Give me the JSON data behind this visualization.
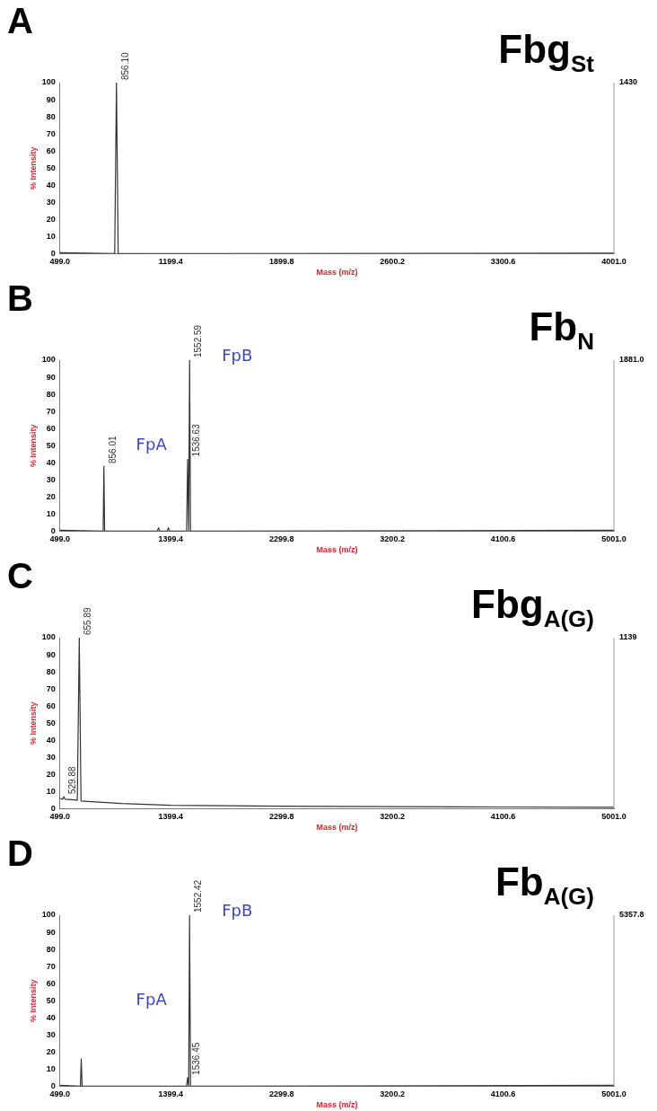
{
  "chart_data": [
    {
      "type": "line",
      "title": "Fbg$_{St}$",
      "xlabel": "Mass (m/z)",
      "ylabel": "% Intensity",
      "marker": "none",
      "legend": false,
      "xlim": [
        499.0,
        4001.0
      ],
      "xticks": [
        {
          "value": 499.0,
          "label": "499.0"
        },
        {
          "value": 1199.4,
          "label": "1199.4"
        },
        {
          "value": 1899.8,
          "label": "1899.8"
        },
        {
          "value": 2600.2,
          "label": "2600.2"
        },
        {
          "value": 3300.6,
          "label": "3300.6"
        },
        {
          "value": 4001.0,
          "label": "4001.0"
        }
      ],
      "ylim": [
        0,
        100
      ],
      "yticks": [
        0,
        10,
        20,
        30,
        40,
        50,
        60,
        70,
        80,
        90,
        100
      ],
      "series": [
        {
          "color": "#333333",
          "x": [
            499,
            845,
            856.1,
            867,
            4001
          ],
          "values": [
            0.5,
            0,
            100,
            0,
            0.3
          ]
        }
      ],
      "annotations": [
        "A",
        "1430",
        {
          "text": "856.10",
          "x": 856.1,
          "y": 100
        }
      ]
    },
    {
      "type": "line",
      "title": "Fb$_{N}$",
      "xlabel": "Mass (m/z)",
      "ylabel": "% Intensity",
      "marker": "none",
      "legend": false,
      "xlim": [
        499.0,
        5001.0
      ],
      "xticks": [
        {
          "value": 499.0,
          "label": "499.0"
        },
        {
          "value": 1399.4,
          "label": "1399.4"
        },
        {
          "value": 2299.8,
          "label": "2299.8"
        },
        {
          "value": 3200.2,
          "label": "3200.2"
        },
        {
          "value": 4100.6,
          "label": "4100.6"
        },
        {
          "value": 5001.0,
          "label": "5001.0"
        }
      ],
      "ylim": [
        0,
        100
      ],
      "yticks": [
        0,
        10,
        20,
        30,
        40,
        50,
        60,
        70,
        80,
        90,
        100
      ],
      "series": [
        {
          "color": "#333333",
          "x": [
            499,
            850,
            856.01,
            862,
            1290,
            1300,
            1310,
            1370,
            1380,
            1390,
            1528,
            1536.63,
            1545,
            1552.59,
            1560,
            5001
          ],
          "values": [
            0.5,
            0,
            38,
            0,
            0,
            2,
            0,
            0,
            2,
            0,
            0,
            42,
            0,
            100,
            0,
            0.5
          ]
        }
      ],
      "annotations": [
        "B",
        "1881.0",
        "FpA",
        "FpB",
        {
          "text": "856.01",
          "x": 856.01,
          "y": 38
        },
        {
          "text": "1536.63",
          "x": 1536.63,
          "y": 42
        },
        {
          "text": "1552.59",
          "x": 1552.59,
          "y": 100
        }
      ]
    },
    {
      "type": "line",
      "title": "Fbg$_{A(G)}$",
      "xlabel": "Mass (m/z)",
      "ylabel": "% Intensity",
      "marker": "none",
      "legend": false,
      "xlim": [
        499.0,
        5001.0
      ],
      "xticks": [
        {
          "value": 499.0,
          "label": "499.0"
        },
        {
          "value": 1399.4,
          "label": "1399.4"
        },
        {
          "value": 2299.8,
          "label": "2299.8"
        },
        {
          "value": 3200.2,
          "label": "3200.2"
        },
        {
          "value": 4100.6,
          "label": "4100.6"
        },
        {
          "value": 5001.0,
          "label": "5001.0"
        }
      ],
      "ylim": [
        0,
        100
      ],
      "yticks": [
        0,
        10,
        20,
        30,
        40,
        50,
        60,
        70,
        80,
        90,
        100
      ],
      "series": [
        {
          "color": "#333333",
          "x": [
            499,
            520,
            529.88,
            540,
            640,
            655.89,
            670,
            1000,
            1400,
            2300,
            3200,
            4100,
            5001
          ],
          "values": [
            6,
            5.5,
            7,
            5.5,
            5,
            100,
            4.5,
            3,
            2,
            1.5,
            1.2,
            1,
            0.8
          ]
        }
      ],
      "annotations": [
        "C",
        "1139",
        {
          "text": "529.88",
          "x": 529.88,
          "y": 7
        },
        {
          "text": "655.89",
          "x": 655.89,
          "y": 100
        }
      ]
    },
    {
      "type": "line",
      "title": "Fb$_{A(G)}$",
      "xlabel": "Mass (m/z)",
      "ylabel": "% Intensity",
      "marker": "none",
      "legend": false,
      "xlim": [
        499.0,
        5001.0
      ],
      "xticks": [
        {
          "value": 499.0,
          "label": "499.0"
        },
        {
          "value": 1399.4,
          "label": "1399.4"
        },
        {
          "value": 2299.8,
          "label": "2299.8"
        },
        {
          "value": 3200.2,
          "label": "3200.2"
        },
        {
          "value": 4100.6,
          "label": "4100.6"
        },
        {
          "value": 5001.0,
          "label": "5001.0"
        }
      ],
      "ylim": [
        0,
        100
      ],
      "yticks": [
        0,
        10,
        20,
        30,
        40,
        50,
        60,
        70,
        80,
        90,
        100
      ],
      "series": [
        {
          "color": "#333333",
          "x": [
            499,
            665,
            672,
            679,
            1528,
            1536.45,
            1545,
            1552.42,
            1560,
            5001
          ],
          "values": [
            0.5,
            0,
            16,
            0,
            0,
            5,
            0,
            100,
            0,
            0.5
          ]
        }
      ],
      "annotations": [
        "D",
        "5357.8",
        "FpA",
        "FpB",
        {
          "text": "1536.45",
          "x": 1536.45,
          "y": 5
        },
        {
          "text": "1552.42",
          "x": 1552.42,
          "y": 100
        }
      ]
    }
  ]
}
